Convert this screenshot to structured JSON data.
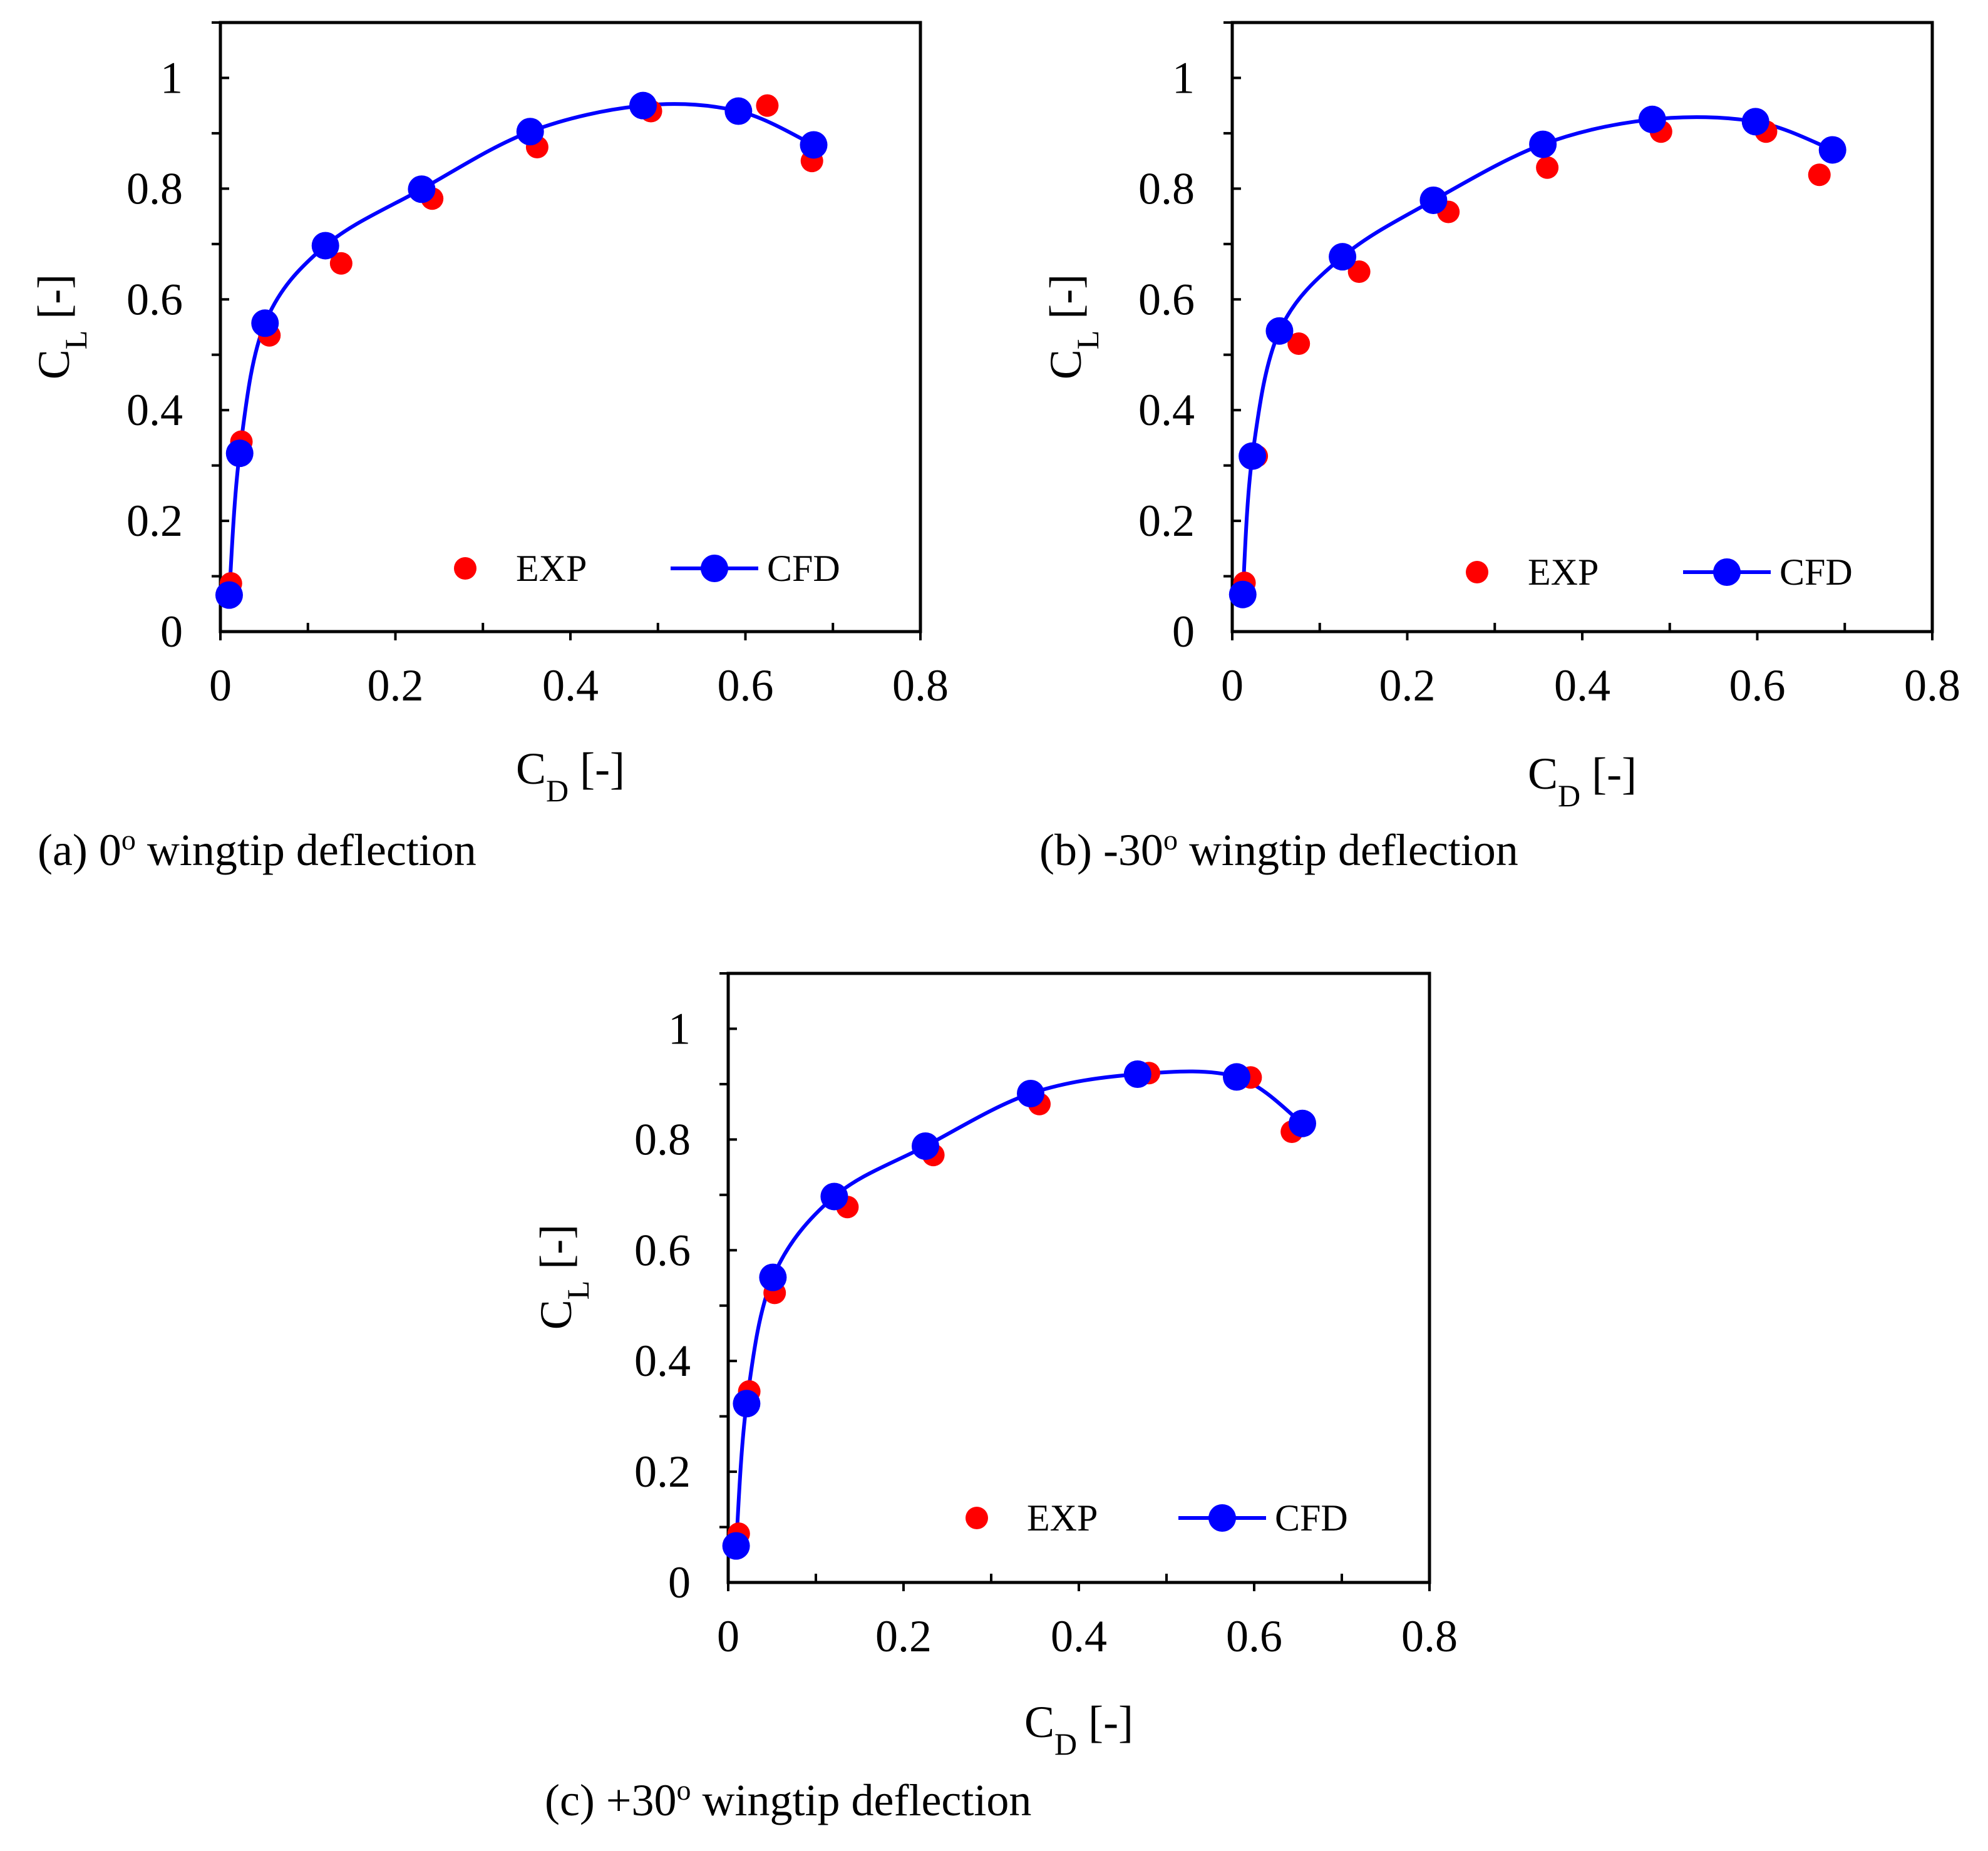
{
  "figure": {
    "colors": {
      "exp": "#ff0000",
      "cfd": "#0000ff",
      "axis": "#000000"
    },
    "legend": {
      "exp_label": "EXP",
      "cfd_label": "CFD"
    }
  },
  "chart_data": [
    {
      "type": "scatter",
      "id": "a",
      "caption": "(a) 0° wingtip deflection",
      "caption_parts": {
        "prefix": "(a) 0",
        "degree": "o",
        "suffix": " wingtip deflection"
      },
      "xlabel": "C_D [-]",
      "ylabel": "C_L [-]",
      "xlabel_parts": {
        "main": "C",
        "sub": "D",
        "unit": " [-]"
      },
      "ylabel_parts": {
        "main": "C",
        "sub": "L",
        "unit": " [-]"
      },
      "xlim": [
        0,
        0.8
      ],
      "ylim": [
        0,
        1.1
      ],
      "xticks": [
        0,
        0.2,
        0.4,
        0.6,
        0.8
      ],
      "xtick_labels": [
        "0",
        "0.2",
        "0.4",
        "0.6",
        "0.8"
      ],
      "yticks": [
        0,
        0.2,
        0.4,
        0.6,
        0.8,
        1
      ],
      "ytick_labels": [
        "0",
        "0.2",
        "0.4",
        "0.6",
        "0.8",
        "1"
      ],
      "grid": false,
      "legend_position": "bottom-right",
      "series": [
        {
          "name": "EXP",
          "style": "markers",
          "x": [
            0.012,
            0.024,
            0.056,
            0.138,
            0.242,
            0.362,
            0.492,
            0.625,
            0.676
          ],
          "y": [
            0.087,
            0.343,
            0.535,
            0.665,
            0.782,
            0.875,
            0.94,
            0.95,
            0.85
          ]
        },
        {
          "name": "CFD",
          "style": "line+markers",
          "x": [
            0.01,
            0.022,
            0.051,
            0.12,
            0.23,
            0.354,
            0.483,
            0.592,
            0.678
          ],
          "y": [
            0.066,
            0.322,
            0.557,
            0.697,
            0.799,
            0.903,
            0.95,
            0.94,
            0.879
          ]
        }
      ]
    },
    {
      "type": "scatter",
      "id": "b",
      "caption": "(b) -30° wingtip deflection",
      "caption_parts": {
        "prefix": "(b) -30",
        "degree": "o",
        "suffix": " wingtip deflection"
      },
      "xlabel": "C_D [-]",
      "ylabel": "C_L [-]",
      "xlabel_parts": {
        "main": "C",
        "sub": "D",
        "unit": " [-]"
      },
      "ylabel_parts": {
        "main": "C",
        "sub": "L",
        "unit": " [-]"
      },
      "xlim": [
        0,
        0.8
      ],
      "ylim": [
        0,
        1.1
      ],
      "xticks": [
        0,
        0.2,
        0.4,
        0.6,
        0.8
      ],
      "xtick_labels": [
        "0",
        "0.2",
        "0.4",
        "0.6",
        "0.8"
      ],
      "yticks": [
        0,
        0.2,
        0.4,
        0.6,
        0.8,
        1
      ],
      "ytick_labels": [
        "0",
        "0.2",
        "0.4",
        "0.6",
        "0.8",
        "1"
      ],
      "grid": false,
      "legend_position": "bottom-right",
      "series": [
        {
          "name": "EXP",
          "style": "markers",
          "x": [
            0.014,
            0.028,
            0.076,
            0.145,
            0.247,
            0.36,
            0.49,
            0.61,
            0.671
          ],
          "y": [
            0.088,
            0.317,
            0.52,
            0.65,
            0.758,
            0.838,
            0.903,
            0.903,
            0.825
          ]
        },
        {
          "name": "CFD",
          "style": "line+markers",
          "x": [
            0.012,
            0.023,
            0.054,
            0.126,
            0.23,
            0.355,
            0.48,
            0.598,
            0.686
          ],
          "y": [
            0.067,
            0.317,
            0.543,
            0.677,
            0.779,
            0.88,
            0.925,
            0.921,
            0.87
          ]
        }
      ]
    },
    {
      "type": "scatter",
      "id": "c",
      "caption": "(c) +30° wingtip deflection",
      "caption_parts": {
        "prefix": "(c) +30",
        "degree": "o",
        "suffix": " wingtip deflection"
      },
      "xlabel": "C_D [-]",
      "ylabel": "C_L [-]",
      "xlabel_parts": {
        "main": "C",
        "sub": "D",
        "unit": " [-]"
      },
      "ylabel_parts": {
        "main": "C",
        "sub": "L",
        "unit": " [-]"
      },
      "xlim": [
        0,
        0.8
      ],
      "ylim": [
        0,
        1.1
      ],
      "xticks": [
        0,
        0.2,
        0.4,
        0.6,
        0.8
      ],
      "xtick_labels": [
        "0",
        "0.2",
        "0.4",
        "0.6",
        "0.8"
      ],
      "yticks": [
        0,
        0.2,
        0.4,
        0.6,
        0.8,
        1
      ],
      "ytick_labels": [
        "0",
        "0.2",
        "0.4",
        "0.6",
        "0.8",
        "1"
      ],
      "grid": false,
      "legend_position": "bottom-right",
      "series": [
        {
          "name": "EXP",
          "style": "markers",
          "x": [
            0.012,
            0.024,
            0.053,
            0.136,
            0.234,
            0.355,
            0.48,
            0.596,
            0.643
          ],
          "y": [
            0.088,
            0.345,
            0.523,
            0.678,
            0.772,
            0.864,
            0.92,
            0.912,
            0.814
          ]
        },
        {
          "name": "CFD",
          "style": "line+markers",
          "x": [
            0.009,
            0.021,
            0.051,
            0.121,
            0.225,
            0.345,
            0.467,
            0.58,
            0.655
          ],
          "y": [
            0.066,
            0.323,
            0.551,
            0.697,
            0.788,
            0.883,
            0.918,
            0.913,
            0.829
          ]
        }
      ]
    }
  ]
}
